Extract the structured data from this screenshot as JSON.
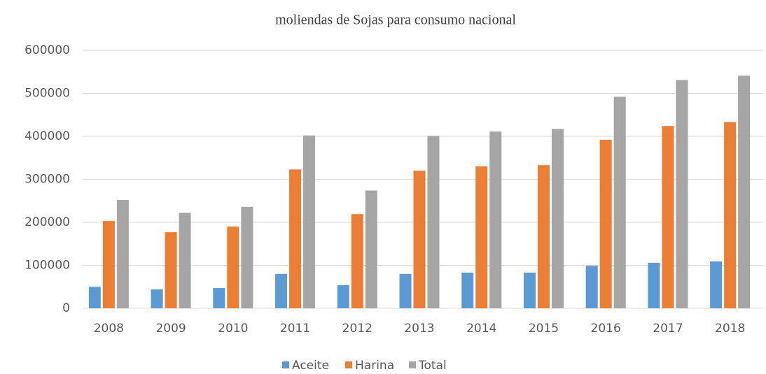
{
  "chart_data": {
    "type": "bar",
    "title": "moliendas de Sojas para consumo nacional",
    "categories": [
      "2008",
      "2009",
      "2010",
      "2011",
      "2012",
      "2013",
      "2014",
      "2015",
      "2016",
      "2017",
      "2018"
    ],
    "series": [
      {
        "name": "Aceite",
        "color": "#5b9bd5",
        "values": [
          50000,
          44000,
          47000,
          80000,
          54000,
          80000,
          83000,
          83000,
          99000,
          106000,
          109000
        ]
      },
      {
        "name": "Harina",
        "color": "#ed7d31",
        "values": [
          203000,
          177000,
          190000,
          323000,
          219000,
          320000,
          330000,
          333000,
          392000,
          424000,
          433000
        ]
      },
      {
        "name": "Total",
        "color": "#a5a5a5",
        "values": [
          252000,
          222000,
          236000,
          402000,
          274000,
          401000,
          411000,
          417000,
          492000,
          531000,
          541000
        ]
      }
    ],
    "ylim": [
      0,
      600000
    ],
    "yticks": [
      0,
      100000,
      200000,
      300000,
      400000,
      500000,
      600000
    ],
    "grid": true,
    "legend": "bottom"
  }
}
